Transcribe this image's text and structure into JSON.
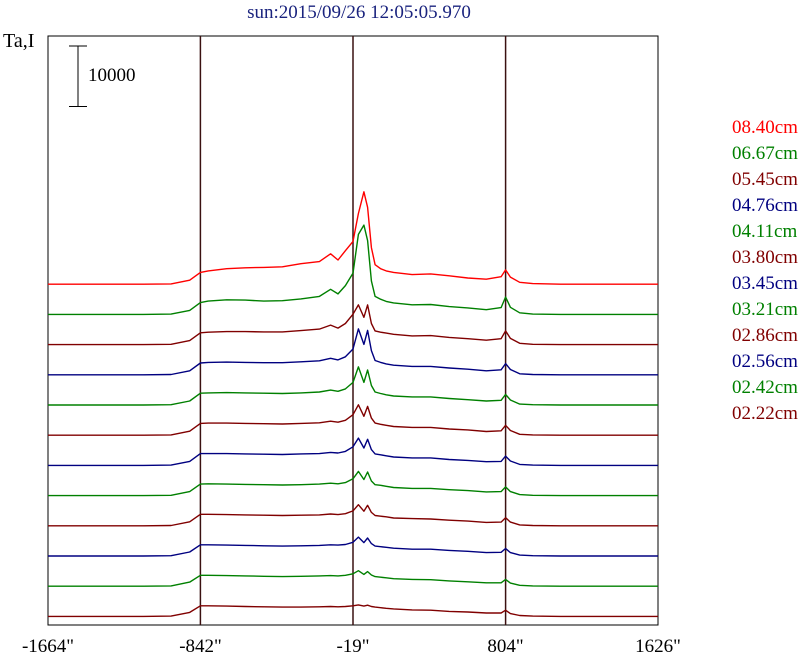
{
  "chart_data": {
    "type": "line",
    "title": "sun:2015/09/26 12:05:05.970",
    "ylabel": "Ta,I",
    "scale_bar_label": "10000",
    "scale_bar_value": 10000,
    "x_ticks": [
      "-1664\"",
      "-842\"",
      "-19\"",
      "804\"",
      "1626\""
    ],
    "xlim": [
      -1664,
      1626
    ],
    "vertical_lines": [
      -842,
      -19,
      804
    ],
    "offset_per_trace": 10000,
    "x": [
      -1664,
      -1500,
      -1300,
      -1150,
      -1000,
      -900,
      -842,
      -800,
      -700,
      -600,
      -500,
      -400,
      -300,
      -200,
      -140,
      -100,
      -60,
      -19,
      10,
      40,
      60,
      80,
      100,
      130,
      160,
      200,
      300,
      400,
      500,
      600,
      700,
      780,
      804,
      830,
      880,
      950,
      1100,
      1300,
      1500,
      1626
    ],
    "series": [
      {
        "name": "08.40cm",
        "color": "#ff0000",
        "values": [
          200,
          200,
          200,
          200,
          300,
          1500,
          4000,
          4500,
          5200,
          5500,
          5600,
          5800,
          6800,
          7500,
          10000,
          8000,
          11000,
          14000,
          23000,
          30000,
          25000,
          12000,
          6500,
          5200,
          4500,
          4000,
          3300,
          3500,
          2900,
          2200,
          1800,
          2600,
          4800,
          2500,
          800,
          400,
          200,
          200,
          200,
          200
        ]
      },
      {
        "name": "06.67cm",
        "color": "#008000",
        "values": [
          200,
          200,
          200,
          200,
          300,
          1500,
          4000,
          4500,
          4900,
          4800,
          4500,
          4600,
          5200,
          6000,
          8300,
          6800,
          9500,
          13500,
          26000,
          29000,
          24000,
          11000,
          6000,
          5100,
          4400,
          3900,
          3300,
          3400,
          2700,
          2300,
          1700,
          2400,
          5800,
          2500,
          700,
          300,
          200,
          200,
          200,
          200
        ]
      },
      {
        "name": "05.45cm",
        "color": "#800000",
        "values": [
          200,
          200,
          200,
          200,
          300,
          1500,
          4000,
          4200,
          4400,
          4400,
          4300,
          4300,
          4700,
          5200,
          6500,
          5500,
          7000,
          10000,
          13000,
          9000,
          13000,
          7000,
          4600,
          4200,
          3900,
          3500,
          3000,
          3100,
          2500,
          2100,
          1600,
          2100,
          4600,
          2200,
          600,
          300,
          200,
          200,
          200,
          200
        ]
      },
      {
        "name": "04.76cm",
        "color": "#000080",
        "values": [
          200,
          200,
          200,
          200,
          300,
          1500,
          4000,
          4200,
          4300,
          4200,
          4100,
          4100,
          4400,
          4700,
          5500,
          5000,
          6000,
          8500,
          15000,
          10000,
          14500,
          8000,
          4800,
          4200,
          3700,
          3300,
          2900,
          2900,
          2400,
          2000,
          1500,
          1800,
          3800,
          1900,
          500,
          300,
          200,
          200,
          200,
          200
        ]
      },
      {
        "name": "04.11cm",
        "color": "#008000",
        "values": [
          200,
          200,
          200,
          200,
          300,
          1500,
          4000,
          4100,
          4200,
          4100,
          4000,
          3900,
          4100,
          4400,
          5000,
          4600,
          5400,
          7500,
          12500,
          7500,
          11500,
          6500,
          4400,
          3900,
          3500,
          3100,
          2800,
          2800,
          2300,
          1900,
          1500,
          1700,
          3600,
          1800,
          500,
          300,
          200,
          200,
          200,
          200
        ]
      },
      {
        "name": "03.80cm",
        "color": "#800000",
        "values": [
          200,
          200,
          200,
          200,
          300,
          1500,
          4000,
          4100,
          4100,
          4000,
          3900,
          3800,
          4000,
          4200,
          4700,
          4400,
          5000,
          6800,
          10000,
          6300,
          9500,
          5700,
          4100,
          3700,
          3400,
          3000,
          2700,
          2700,
          2200,
          1900,
          1400,
          1600,
          3400,
          1700,
          500,
          300,
          200,
          200,
          200,
          200
        ]
      },
      {
        "name": "03.45cm",
        "color": "#000080",
        "values": [
          200,
          200,
          200,
          200,
          300,
          1500,
          4000,
          4000,
          4000,
          3900,
          3800,
          3700,
          3900,
          4000,
          4400,
          4200,
          4700,
          6200,
          9000,
          5800,
          8600,
          5300,
          3900,
          3600,
          3300,
          2900,
          2600,
          2600,
          2100,
          1800,
          1400,
          1500,
          3200,
          1600,
          500,
          300,
          200,
          200,
          200,
          200
        ]
      },
      {
        "name": "03.21cm",
        "color": "#008000",
        "values": [
          200,
          200,
          200,
          200,
          300,
          1500,
          3900,
          4000,
          3900,
          3800,
          3700,
          3600,
          3700,
          3900,
          4200,
          4000,
          4400,
          5600,
          8000,
          5400,
          7800,
          4900,
          3700,
          3500,
          3200,
          2800,
          2500,
          2500,
          2100,
          1800,
          1400,
          1500,
          3000,
          1500,
          500,
          300,
          200,
          200,
          200,
          200
        ]
      },
      {
        "name": "02.86cm",
        "color": "#800000",
        "values": [
          200,
          200,
          200,
          200,
          300,
          1500,
          3900,
          3900,
          3800,
          3700,
          3600,
          3500,
          3600,
          3700,
          4000,
          3800,
          4100,
          5000,
          7000,
          4900,
          6800,
          4500,
          3500,
          3300,
          3100,
          2700,
          2500,
          2400,
          2000,
          1700,
          1300,
          1400,
          2800,
          1400,
          500,
          300,
          200,
          200,
          200,
          200
        ]
      },
      {
        "name": "02.56cm",
        "color": "#000080",
        "values": [
          200,
          200,
          200,
          200,
          300,
          1500,
          3800,
          3800,
          3700,
          3600,
          3500,
          3400,
          3500,
          3600,
          3800,
          3700,
          3900,
          4600,
          6300,
          4500,
          6000,
          4200,
          3400,
          3200,
          3000,
          2700,
          2400,
          2400,
          2000,
          1700,
          1300,
          1400,
          2600,
          1300,
          500,
          300,
          200,
          200,
          200,
          200
        ]
      },
      {
        "name": "02.42cm",
        "color": "#008000",
        "values": [
          200,
          200,
          200,
          200,
          300,
          1500,
          3700,
          3700,
          3600,
          3500,
          3400,
          3300,
          3400,
          3500,
          3600,
          3500,
          3700,
          4200,
          5200,
          4000,
          4900,
          3800,
          3300,
          3100,
          2900,
          2600,
          2400,
          2300,
          1900,
          1600,
          1300,
          1300,
          2400,
          1200,
          500,
          300,
          200,
          200,
          200,
          200
        ]
      },
      {
        "name": "02.22cm",
        "color": "#800000",
        "values": [
          200,
          200,
          200,
          200,
          300,
          1500,
          3600,
          3600,
          3500,
          3400,
          3300,
          3200,
          3200,
          3300,
          3400,
          3300,
          3400,
          3600,
          3900,
          3500,
          3800,
          3400,
          3200,
          3000,
          2800,
          2600,
          2300,
          2200,
          1800,
          1600,
          1300,
          1300,
          2200,
          1100,
          500,
          300,
          200,
          200,
          200,
          200
        ]
      }
    ],
    "grid": false,
    "legend_position": "right"
  },
  "colors": {
    "title": "#1a237e",
    "frame": "#000000",
    "vline": "#3a1010"
  }
}
